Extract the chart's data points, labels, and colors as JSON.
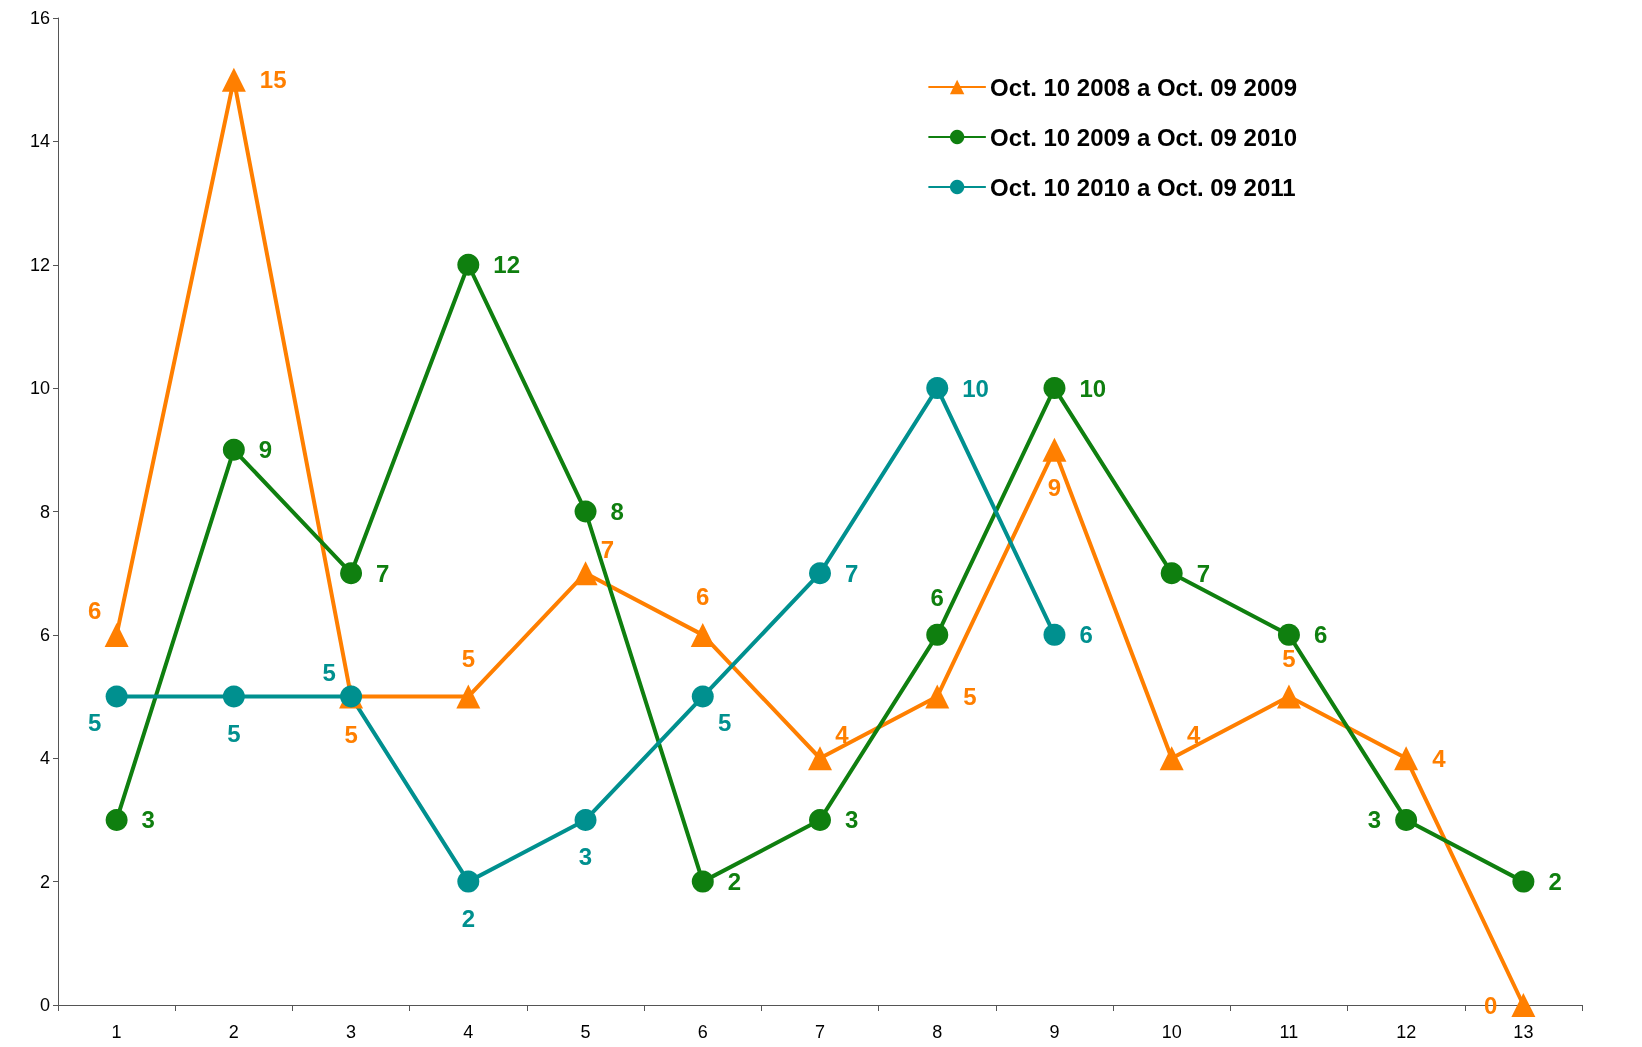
{
  "chart_data": {
    "type": "line",
    "categories": [
      "1",
      "2",
      "3",
      "4",
      "5",
      "6",
      "7",
      "8",
      "9",
      "10",
      "11",
      "12",
      "13"
    ],
    "series": [
      {
        "name": "Oct. 10 2008 a Oct. 09 2009",
        "color": "#ff7f00",
        "marker": "triangle",
        "values": [
          6,
          15,
          5,
          5,
          7,
          6,
          4,
          5,
          9,
          4,
          5,
          4,
          0
        ]
      },
      {
        "name": "Oct. 10 2009 a Oct. 09 2010",
        "color": "#0f7f0f",
        "marker": "circle",
        "values": [
          3,
          9,
          7,
          12,
          8,
          2,
          3,
          6,
          10,
          7,
          6,
          3,
          2
        ]
      },
      {
        "name": "Oct. 10 2010 a Oct. 09 2011",
        "color": "#00908f",
        "marker": "circle",
        "values": [
          5,
          5,
          5,
          2,
          3,
          5,
          7,
          10,
          6,
          null,
          null,
          null,
          null
        ]
      }
    ],
    "ylim": [
      0,
      16
    ],
    "yticks": [
      0,
      2,
      4,
      6,
      8,
      10,
      12,
      14,
      16
    ],
    "grid": false,
    "legend": "top right",
    "data_labels": true,
    "line_style": "solid"
  }
}
